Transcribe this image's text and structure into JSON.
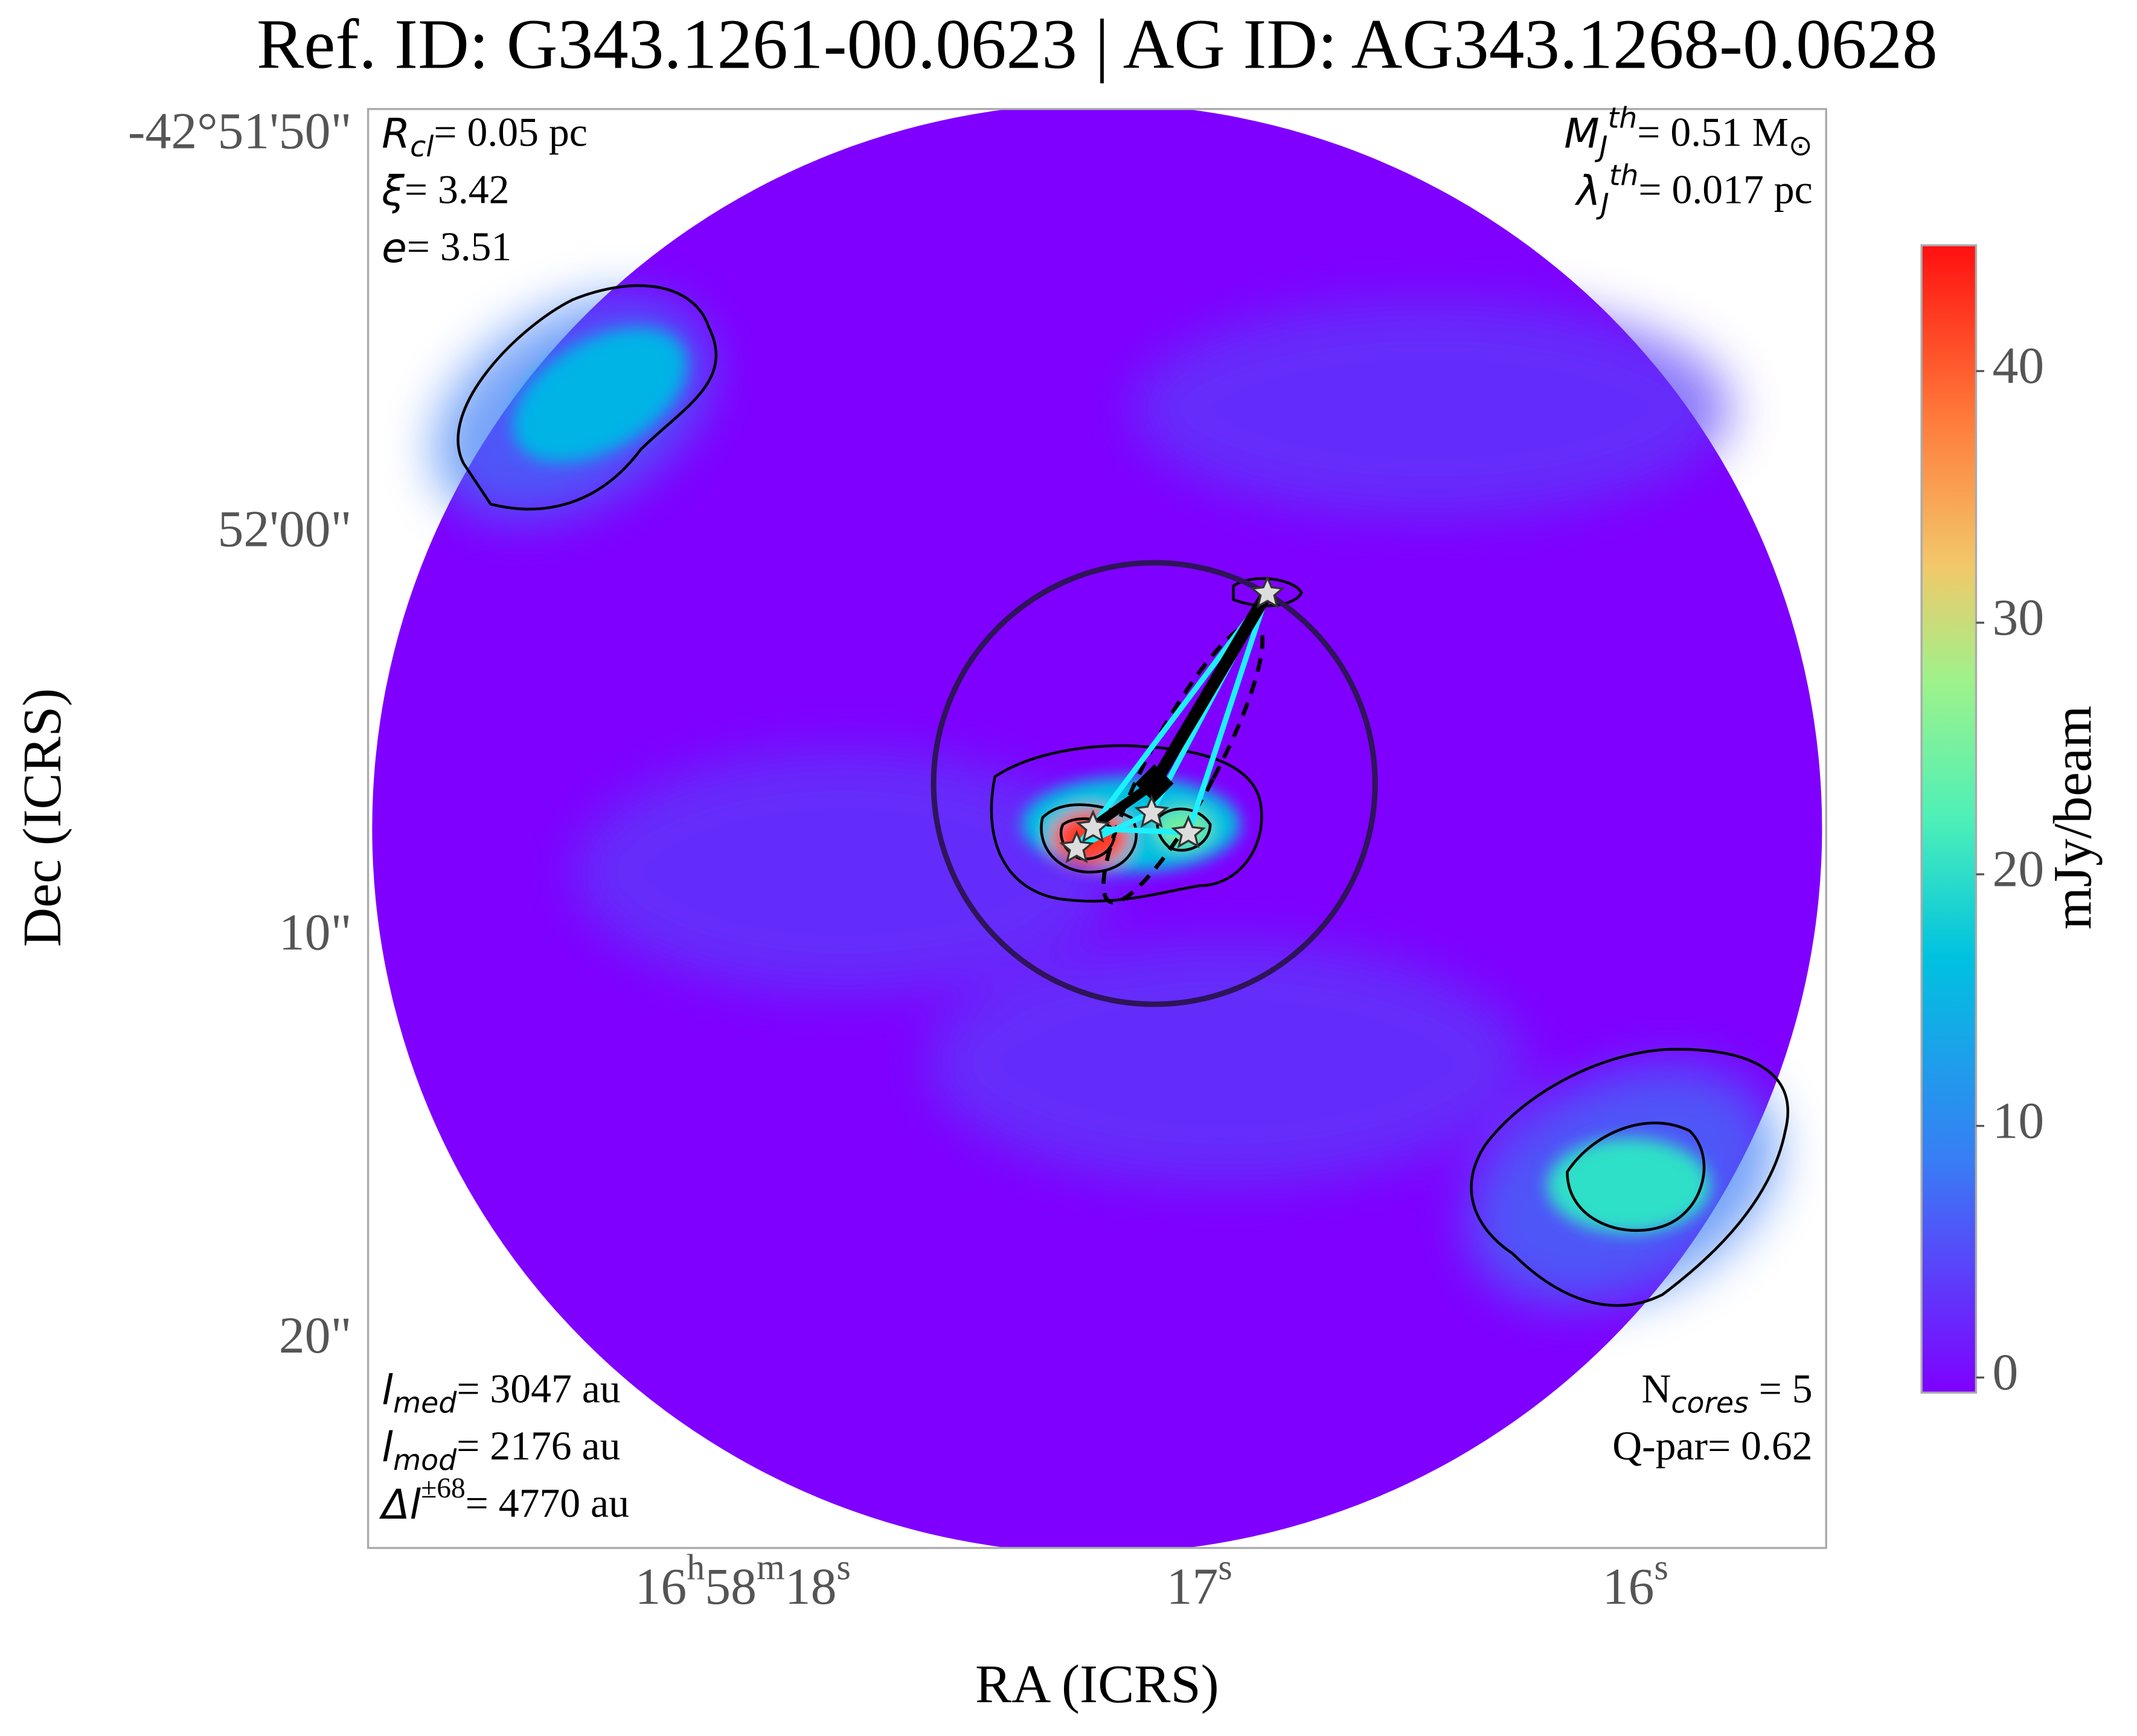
{
  "chart_data": {
    "type": "image",
    "title": "Ref. ID: G343.1261-00.0623 | AG ID: AG343.1268-0.0628",
    "x_label": "RA (ICRS)",
    "y_label": "Dec (ICRS)",
    "xtick_labels": [
      [
        {
          "t": "16"
        },
        {
          "t": "h",
          "shift": "super"
        },
        {
          "t": "58"
        },
        {
          "t": "m",
          "shift": "super"
        },
        {
          "t": "18"
        },
        {
          "t": "s",
          "shift": "super"
        }
      ],
      [
        {
          "t": "17"
        },
        {
          "t": "s",
          "shift": "super"
        }
      ],
      [
        {
          "t": "16"
        },
        {
          "t": "s",
          "shift": "super"
        }
      ]
    ],
    "ytick_labels": [
      "-42°51'50\"",
      "52'00\"",
      "10\"",
      "20\""
    ],
    "colorbar_label": "mJy/beam",
    "clim": [
      -0.6,
      45
    ],
    "cticks": [
      0,
      10,
      20,
      30,
      40
    ],
    "annotations_top_left": [
      [
        {
          "t": "R",
          "i": true
        },
        {
          "t": "cl",
          "i": true,
          "shift": "sub"
        },
        {
          "t": "= 0.05 pc"
        }
      ],
      [
        {
          "t": "ξ",
          "i": true
        },
        {
          "t": "= 3.42"
        }
      ],
      [
        {
          "t": "e",
          "i": true
        },
        {
          "t": "= 3.51"
        }
      ]
    ],
    "annotations_top_right": [
      [
        {
          "t": "M",
          "i": true
        },
        {
          "t": "J",
          "i": true,
          "shift": "sub"
        },
        {
          "t": "th",
          "i": true,
          "shift": "super"
        },
        {
          "t": "= 0.51 M"
        },
        {
          "t": "⊙",
          "shift": "sub"
        }
      ],
      [
        {
          "t": "λ",
          "i": true
        },
        {
          "t": "J",
          "i": true,
          "shift": "sub"
        },
        {
          "t": "th",
          "i": true,
          "shift": "super"
        },
        {
          "t": "= 0.017 pc"
        }
      ]
    ],
    "annotations_bottom_left": [
      [
        {
          "t": "l",
          "i": true
        },
        {
          "t": "med",
          "i": true,
          "shift": "sub"
        },
        {
          "t": "= 3047 au"
        }
      ],
      [
        {
          "t": "l",
          "i": true
        },
        {
          "t": "mod",
          "i": true,
          "shift": "sub"
        },
        {
          "t": "= 2176 au"
        }
      ],
      [
        {
          "t": "Δl",
          "i": true
        },
        {
          "t": "±68",
          "shift": "super"
        },
        {
          "t": "= 4770 au"
        }
      ]
    ],
    "annotations_bottom_right": [
      [
        {
          "t": "N"
        },
        {
          "t": "cores",
          "i": true,
          "shift": "sub"
        },
        {
          "t": " = 5"
        }
      ],
      [
        {
          "t": "Q-par= 0.62"
        }
      ]
    ]
  }
}
